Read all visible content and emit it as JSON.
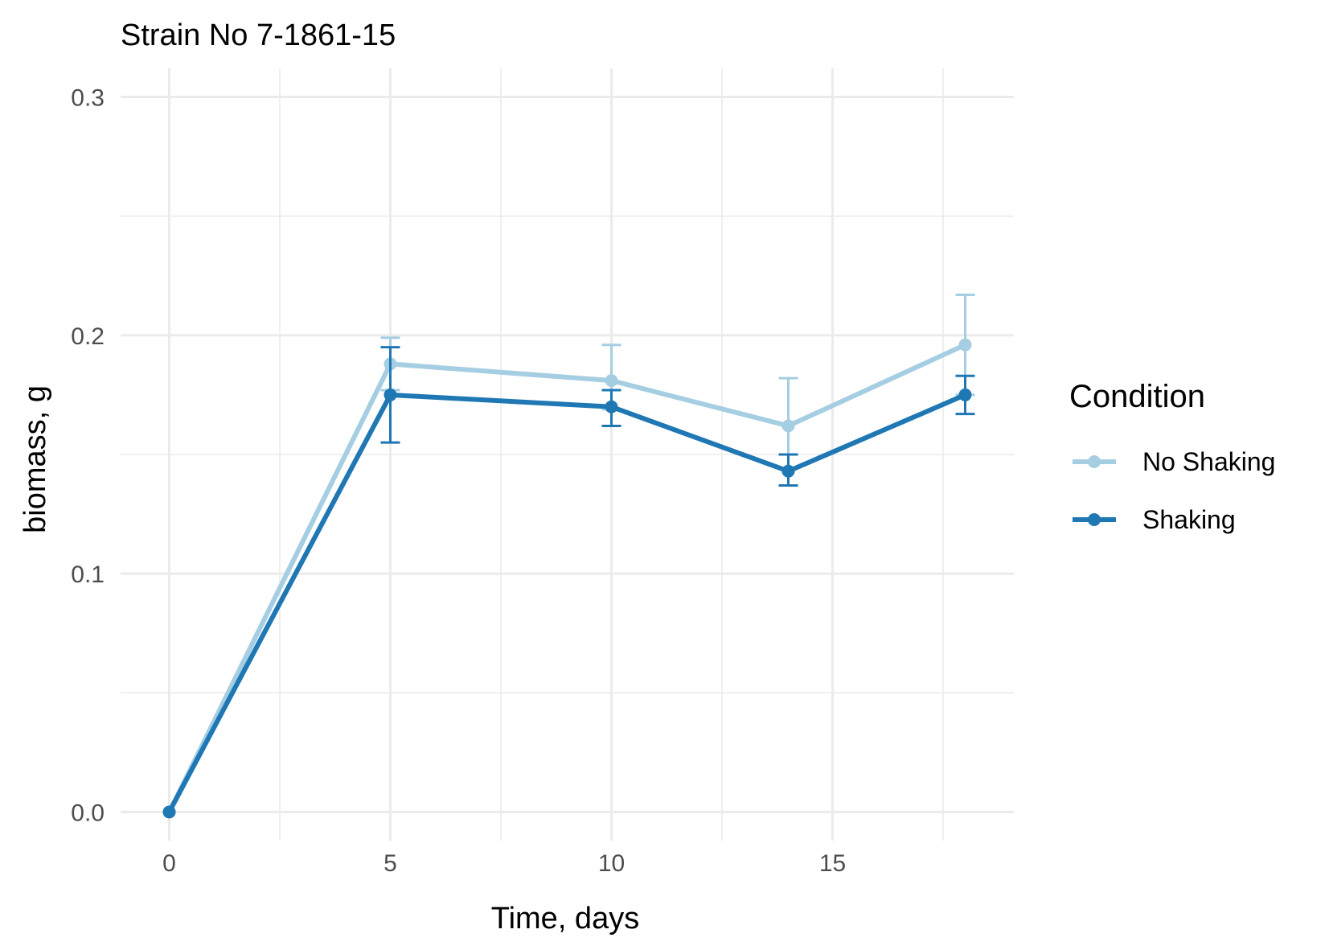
{
  "chart_data": {
    "type": "line",
    "title": "Strain No  7-1861-15",
    "xlabel": "Time, days",
    "ylabel": "biomass, g",
    "xlim": [
      -1.1,
      19.1
    ],
    "ylim": [
      -0.012,
      0.312
    ],
    "x_ticks": [
      0,
      5,
      10,
      15
    ],
    "x_tick_labels": [
      "0",
      "5",
      "10",
      "15"
    ],
    "y_ticks": [
      0.0,
      0.1,
      0.2,
      0.3
    ],
    "y_tick_labels": [
      "0.0",
      "0.1",
      "0.2",
      "0.3"
    ],
    "grid": true,
    "legend": {
      "title": "Condition",
      "position": "right"
    },
    "series": [
      {
        "name": "No Shaking",
        "color": "#a6cee3",
        "x": [
          0,
          5,
          10,
          14,
          18
        ],
        "y": [
          0.0,
          0.188,
          0.181,
          0.162,
          0.196
        ],
        "err_low": [
          0.0,
          0.177,
          0.169,
          0.15,
          0.175
        ],
        "err_high": [
          0.0,
          0.199,
          0.196,
          0.182,
          0.217
        ]
      },
      {
        "name": "Shaking",
        "color": "#1f78b4",
        "x": [
          0,
          5,
          10,
          14,
          18
        ],
        "y": [
          0.0,
          0.175,
          0.17,
          0.143,
          0.175
        ],
        "err_low": [
          0.0,
          0.155,
          0.162,
          0.137,
          0.167
        ],
        "err_high": [
          0.0,
          0.195,
          0.177,
          0.15,
          0.183
        ]
      }
    ]
  }
}
